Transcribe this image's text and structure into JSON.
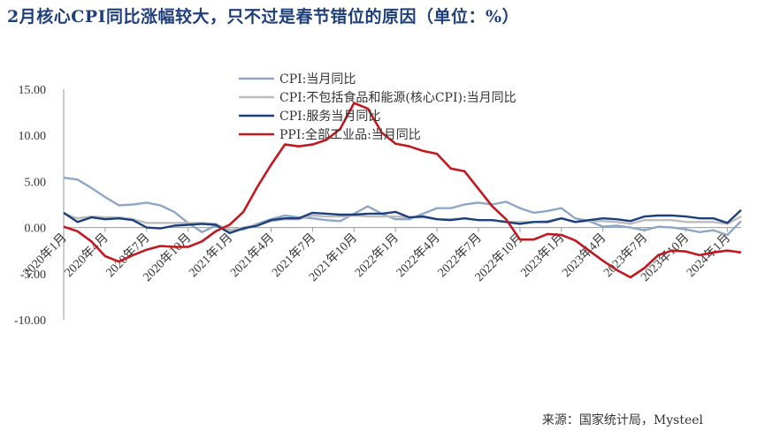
{
  "title": "2月核心CPI同比涨幅较大，只不过是春节错位的原因（单位：%）",
  "source": "来源：国家统计局，Mysteel",
  "chart_data": {
    "type": "line",
    "ylim": [
      -10,
      15
    ],
    "yticks": [
      "15.00",
      "10.00",
      "5.00",
      "0.00",
      "-5.00",
      "-10.00"
    ],
    "ytick_values": [
      15,
      10,
      5,
      0,
      -5,
      -10
    ],
    "x": [
      "2020-01",
      "2020-02",
      "2020-03",
      "2020-04",
      "2020-05",
      "2020-06",
      "2020-07",
      "2020-08",
      "2020-09",
      "2020-10",
      "2020-11",
      "2020-12",
      "2021-01",
      "2021-02",
      "2021-03",
      "2021-04",
      "2021-05",
      "2021-06",
      "2021-07",
      "2021-08",
      "2021-09",
      "2021-10",
      "2021-11",
      "2021-12",
      "2022-01",
      "2022-02",
      "2022-03",
      "2022-04",
      "2022-05",
      "2022-06",
      "2022-07",
      "2022-08",
      "2022-09",
      "2022-10",
      "2022-11",
      "2022-12",
      "2023-01",
      "2023-02",
      "2023-03",
      "2023-04",
      "2023-05",
      "2023-06",
      "2023-07",
      "2023-08",
      "2023-09",
      "2023-10",
      "2023-11",
      "2023-12",
      "2024-01",
      "2024-02"
    ],
    "xtick_labels": [
      "2020年1月",
      "2020年4月",
      "2020年7月",
      "2020年10月",
      "2021年1月",
      "2021年4月",
      "2021年7月",
      "2021年10月",
      "2022年1月",
      "2022年4月",
      "2022年7月",
      "2022年10月",
      "2023年1月",
      "2023年4月",
      "2023年7月",
      "2023年10月",
      "2024年1月"
    ],
    "legend_position": "top-center",
    "grid": false,
    "series": [
      {
        "name": "CPI:当月同比",
        "color": "#8ea7c8",
        "values": [
          5.4,
          5.2,
          4.3,
          3.3,
          2.4,
          2.5,
          2.7,
          2.4,
          1.7,
          0.5,
          -0.5,
          0.2,
          -0.3,
          -0.2,
          0.4,
          0.9,
          1.3,
          1.1,
          1.0,
          0.8,
          0.7,
          1.5,
          2.3,
          1.5,
          0.9,
          0.9,
          1.5,
          2.1,
          2.1,
          2.5,
          2.7,
          2.5,
          2.8,
          2.1,
          1.6,
          1.8,
          2.1,
          1.0,
          0.7,
          0.1,
          0.2,
          0.0,
          -0.3,
          0.1,
          0.0,
          -0.2,
          -0.5,
          -0.3,
          -0.8,
          0.7
        ]
      },
      {
        "name": "CPI:不包括食品和能源(核心CPI):当月同比",
        "color": "#bcbcbc",
        "values": [
          1.5,
          1.0,
          1.2,
          1.1,
          1.1,
          0.9,
          0.5,
          0.5,
          0.5,
          0.5,
          0.5,
          0.4,
          -0.3,
          0.0,
          0.3,
          0.7,
          0.9,
          0.9,
          1.3,
          1.2,
          1.2,
          1.3,
          1.2,
          1.2,
          1.2,
          1.1,
          1.1,
          0.9,
          0.9,
          1.0,
          0.8,
          0.8,
          0.6,
          0.6,
          0.6,
          0.7,
          1.0,
          0.6,
          0.7,
          0.7,
          0.6,
          0.4,
          0.8,
          0.8,
          0.8,
          0.6,
          0.6,
          0.6,
          0.4,
          1.2
        ]
      },
      {
        "name": "CPI:服务当月同比",
        "color": "#1b3f7d",
        "values": [
          1.6,
          0.6,
          1.1,
          0.9,
          1.0,
          0.8,
          0.0,
          -0.1,
          0.2,
          0.3,
          0.4,
          0.3,
          -0.6,
          -0.1,
          0.2,
          0.8,
          1.0,
          1.0,
          1.6,
          1.5,
          1.4,
          1.4,
          1.5,
          1.5,
          1.7,
          1.1,
          1.2,
          0.9,
          0.8,
          1.0,
          0.8,
          0.8,
          0.6,
          0.4,
          0.6,
          0.6,
          1.0,
          0.6,
          0.8,
          1.0,
          0.9,
          0.7,
          1.2,
          1.3,
          1.3,
          1.2,
          1.0,
          1.0,
          0.5,
          1.9
        ]
      },
      {
        "name": "PPI:全部工业品:当月同比",
        "color": "#c0191f",
        "values": [
          0.1,
          -0.4,
          -1.5,
          -3.1,
          -3.7,
          -3.0,
          -2.4,
          -2.0,
          -2.1,
          -2.1,
          -1.5,
          -0.4,
          0.3,
          1.7,
          4.4,
          6.8,
          9.0,
          8.8,
          9.0,
          9.5,
          10.7,
          13.5,
          12.9,
          10.3,
          9.1,
          8.8,
          8.3,
          8.0,
          6.4,
          6.1,
          4.2,
          2.3,
          0.9,
          -1.3,
          -1.3,
          -0.7,
          -0.8,
          -1.4,
          -2.5,
          -3.6,
          -4.6,
          -5.4,
          -4.4,
          -3.0,
          -2.5,
          -2.6,
          -3.0,
          -2.7,
          -2.5,
          -2.7
        ]
      }
    ]
  }
}
